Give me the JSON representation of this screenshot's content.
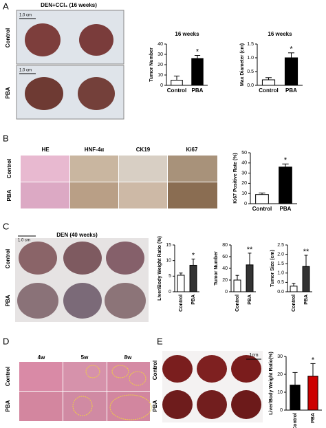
{
  "panels": {
    "A": {
      "label": "A",
      "title": "DEN+CCl₄ (16 weeks)",
      "rows": [
        "Control",
        "PBA"
      ],
      "scale_bars": [
        "1.0 cm",
        "1.0 cm"
      ]
    },
    "B": {
      "label": "B",
      "columns": [
        "HE",
        "HNF-4α",
        "CK19",
        "Ki67"
      ],
      "rows": [
        "Control",
        "PBA"
      ]
    },
    "C": {
      "label": "C",
      "title": "DEN (40 weeks)",
      "scale_bar": "1.0 cm",
      "rows": [
        "Control",
        "PBA"
      ]
    },
    "D": {
      "label": "D",
      "columns": [
        "4w",
        "5w",
        "8w"
      ],
      "rows": [
        "Control",
        "PBA"
      ]
    },
    "E": {
      "label": "E",
      "scale_bar": "1cm",
      "rows": [
        "Control",
        "PBA"
      ]
    }
  },
  "chart_data": [
    {
      "type": "bar",
      "title": "16 weeks",
      "y_label": "Tumor Number",
      "categories": [
        "Control",
        "PBA"
      ],
      "values": [
        5,
        26
      ],
      "errors": [
        4,
        3
      ],
      "colors": [
        "#ffffff",
        "#000000"
      ],
      "significance": [
        null,
        "*"
      ],
      "ylim": [
        0,
        40
      ],
      "yticks": [
        0,
        10,
        20,
        30,
        40
      ]
    },
    {
      "type": "bar",
      "title": "16 weeks",
      "y_label": "Max Diameter (cm)",
      "categories": [
        "Control",
        "PBA"
      ],
      "values": [
        0.2,
        1.0
      ],
      "errors": [
        0.08,
        0.18
      ],
      "colors": [
        "#ffffff",
        "#000000"
      ],
      "significance": [
        null,
        "*"
      ],
      "ylim": [
        0,
        1.5
      ],
      "yticks": [
        {
          "value": 0,
          "label": "0.0"
        },
        0.5,
        {
          "value": 1,
          "label": "1.0"
        },
        1.5
      ]
    },
    {
      "type": "bar",
      "y_label": "Ki67 Positive Rate (%)",
      "categories": [
        "Control",
        "PBA"
      ],
      "values": [
        9,
        36
      ],
      "errors": [
        1.5,
        3
      ],
      "colors": [
        "#ffffff",
        "#000000"
      ],
      "significance": [
        null,
        "*"
      ],
      "ylim": [
        0,
        50
      ],
      "yticks": [
        0,
        10,
        20,
        30,
        40,
        50
      ]
    },
    {
      "type": "bar",
      "y_label": "Liver/Body Weight Ratio (%)",
      "categories": [
        "Control",
        "PBA"
      ],
      "values": [
        5.3,
        8.5
      ],
      "errors": [
        0.7,
        2
      ],
      "colors": [
        "#ffffff",
        "#333333"
      ],
      "significance": [
        null,
        "*"
      ],
      "ylim": [
        0,
        15
      ],
      "yticks": [
        0,
        5,
        10,
        15
      ]
    },
    {
      "type": "bar",
      "y_label": "Tumor Number",
      "categories": [
        "Control",
        "PBA"
      ],
      "values": [
        20,
        46
      ],
      "errors": [
        8,
        20
      ],
      "colors": [
        "#ffffff",
        "#333333"
      ],
      "significance": [
        null,
        "**"
      ],
      "ylim": [
        0,
        80
      ],
      "yticks": [
        0,
        20,
        40,
        60,
        80
      ]
    },
    {
      "type": "bar",
      "y_label": "Tumor Size (cm)",
      "categories": [
        "Control",
        "PBA"
      ],
      "values": [
        0.3,
        1.35
      ],
      "errors": [
        0.15,
        0.6
      ],
      "colors": [
        "#ffffff",
        "#333333"
      ],
      "significance": [
        null,
        "**"
      ],
      "ylim": [
        0,
        2.5
      ],
      "yticks": [
        {
          "value": 0,
          "label": "0.0"
        },
        0.5,
        {
          "value": 1,
          "label": "1.0"
        },
        1.5,
        {
          "value": 2,
          "label": "2.0"
        },
        2.5
      ]
    },
    {
      "type": "bar",
      "y_label": "Liver/Body Weight Ratio(%)",
      "categories": [
        "Control",
        "PBA"
      ],
      "values": [
        14,
        19
      ],
      "errors": [
        7,
        7
      ],
      "colors": [
        "#000000",
        "#cc0000"
      ],
      "significance": [
        null,
        "*"
      ],
      "ylim": [
        0,
        30
      ],
      "yticks": [
        0,
        10,
        20,
        30
      ]
    }
  ]
}
